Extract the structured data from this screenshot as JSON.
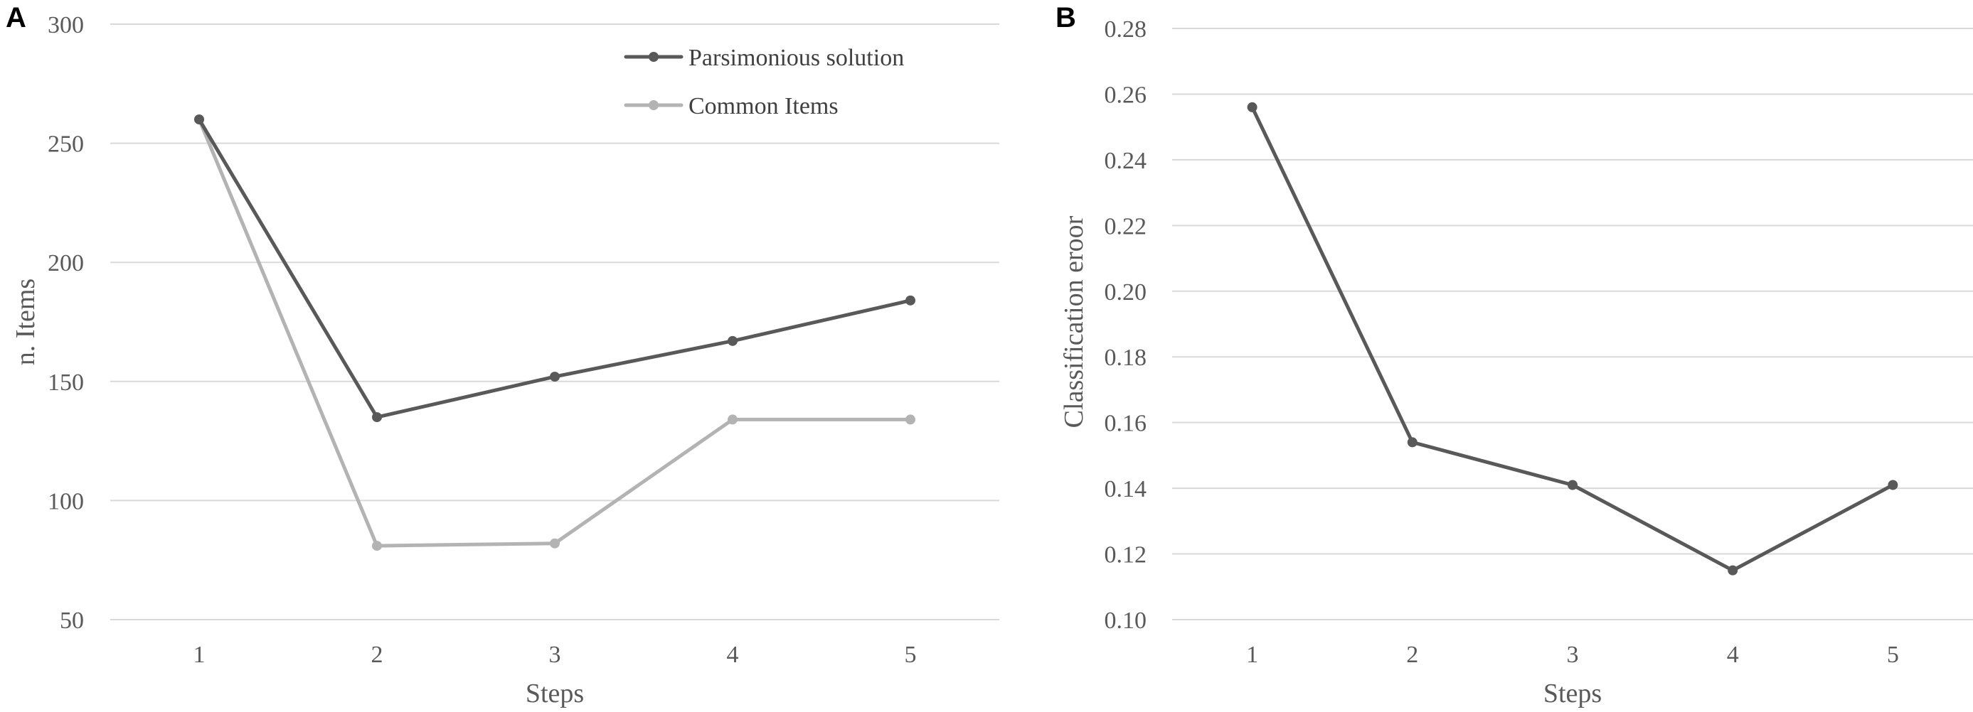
{
  "chart_data": [
    {
      "panel": "A",
      "type": "line",
      "xlabel": "Steps",
      "ylabel": "n. Items",
      "categories": [
        "1",
        "2",
        "3",
        "4",
        "5"
      ],
      "ylim": [
        50,
        300
      ],
      "yticks": [
        50,
        100,
        150,
        200,
        250,
        300
      ],
      "ytick_labels": [
        "50",
        "100",
        "150",
        "200",
        "250",
        "300"
      ],
      "grid": true,
      "legend_position": "top-right",
      "series": [
        {
          "name": "Parsimonious solution",
          "color": "#595959",
          "values": [
            260,
            135,
            152,
            167,
            184
          ]
        },
        {
          "name": "Common Items",
          "color": "#b3b3b3",
          "values": [
            260,
            81,
            82,
            134,
            134
          ]
        }
      ]
    },
    {
      "panel": "B",
      "type": "line",
      "xlabel": "Steps",
      "ylabel": "Classification eroor",
      "categories": [
        "1",
        "2",
        "3",
        "4",
        "5"
      ],
      "ylim": [
        0.1,
        0.28
      ],
      "yticks": [
        0.1,
        0.12,
        0.14,
        0.16,
        0.18,
        0.2,
        0.22,
        0.24,
        0.26,
        0.28
      ],
      "ytick_labels": [
        "0.10",
        "0.12",
        "0.14",
        "0.16",
        "0.18",
        "0.20",
        "0.22",
        "0.24",
        "0.26",
        "0.28"
      ],
      "grid": true,
      "series": [
        {
          "name": "Classification error",
          "color": "#595959",
          "values": [
            0.256,
            0.154,
            0.141,
            0.115,
            0.141
          ]
        }
      ]
    }
  ]
}
